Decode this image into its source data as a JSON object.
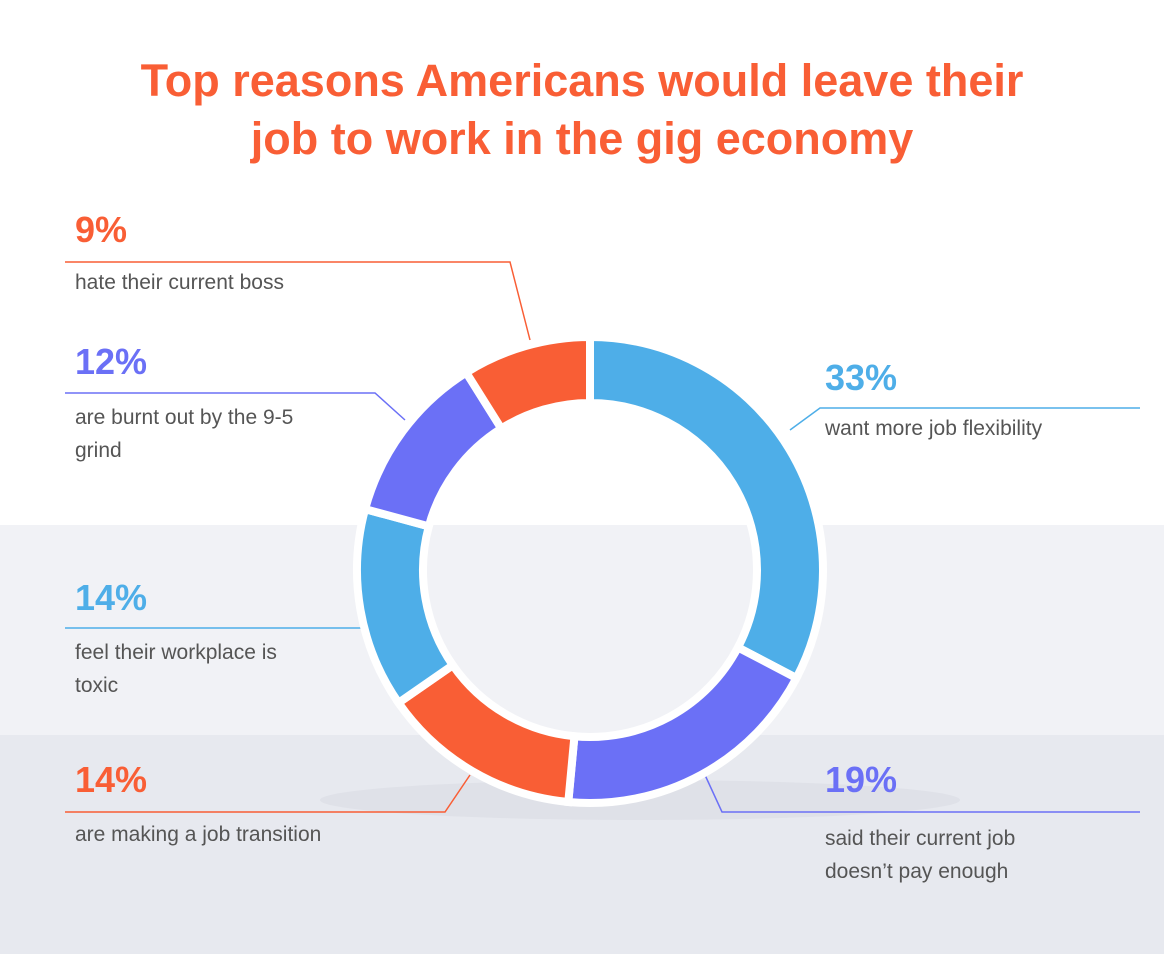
{
  "chart_data": {
    "type": "pie",
    "title": "Top reasons Americans would leave their job to work in the gig economy",
    "categories": [
      "want more job flexibility",
      "said their current job doesn’t pay enough",
      "are making a job transition",
      "feel their workplace is toxic",
      "are burnt out by the 9-5 grind",
      "hate their current boss"
    ],
    "values": [
      33,
      19,
      14,
      14,
      12,
      9
    ],
    "value_labels": [
      "33%",
      "19%",
      "14%",
      "14%",
      "12%",
      "9%"
    ],
    "colors": [
      "#4eaee8",
      "#6b70f6",
      "#f95e35",
      "#4eaee8",
      "#6b70f6",
      "#f95e35"
    ]
  }
}
